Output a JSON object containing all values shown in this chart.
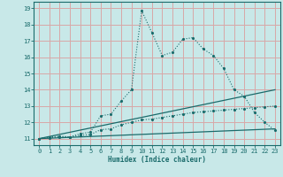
{
  "bg_color": "#c8e8e8",
  "grid_color": "#d8a8a8",
  "line_color": "#1a6b6b",
  "xlabel": "Humidex (Indice chaleur)",
  "xlim": [
    -0.5,
    23.5
  ],
  "ylim": [
    10.6,
    19.4
  ],
  "yticks": [
    11,
    12,
    13,
    14,
    15,
    16,
    17,
    18,
    19
  ],
  "xticks": [
    0,
    1,
    2,
    3,
    4,
    5,
    6,
    7,
    8,
    9,
    10,
    11,
    12,
    13,
    14,
    15,
    16,
    17,
    18,
    19,
    20,
    21,
    22,
    23
  ],
  "series1_x": [
    0,
    1,
    2,
    3,
    4,
    5,
    6,
    7,
    8,
    9,
    10,
    11,
    12,
    13,
    14,
    15,
    16,
    17,
    18,
    19,
    20,
    21,
    22,
    23
  ],
  "series1_y": [
    11.0,
    11.1,
    11.15,
    11.1,
    11.3,
    11.4,
    12.4,
    12.5,
    13.3,
    14.0,
    18.85,
    17.5,
    16.1,
    16.3,
    17.1,
    17.2,
    16.5,
    16.1,
    15.3,
    14.0,
    13.6,
    12.6,
    12.0,
    11.5
  ],
  "series2_x": [
    0,
    1,
    2,
    3,
    4,
    5,
    6,
    7,
    8,
    9,
    10,
    11,
    12,
    13,
    14,
    15,
    16,
    17,
    18,
    19,
    20,
    21,
    22,
    23
  ],
  "series2_y": [
    11.0,
    11.05,
    11.1,
    11.1,
    11.2,
    11.25,
    11.55,
    11.6,
    11.85,
    12.0,
    12.15,
    12.2,
    12.3,
    12.4,
    12.5,
    12.6,
    12.65,
    12.7,
    12.75,
    12.8,
    12.85,
    12.9,
    12.95,
    13.0
  ],
  "series3_x": [
    0,
    23
  ],
  "series3_y": [
    11.0,
    14.0
  ],
  "series4_x": [
    0,
    23
  ],
  "series4_y": [
    11.0,
    11.6
  ]
}
